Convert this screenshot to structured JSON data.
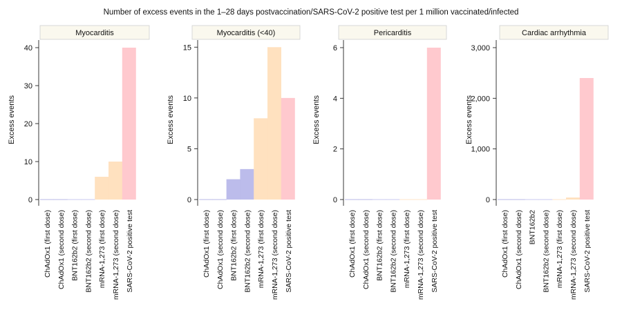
{
  "figure": {
    "title": "Number of excess events in the 1–28 days postvaccination/SARS-CoV-2 positive test per 1 million vaccinated/infected"
  },
  "colors": {
    "ChAdOx1": "#9999dd",
    "BNT162b2": "#b0b0e8",
    "mRNA": "#ffdcb4",
    "SARS": "#ffc0c6",
    "panel_header_bg": "#faf8ee",
    "panel_header_border": "#cfcfcf"
  },
  "chart_data": [
    {
      "type": "bar",
      "title": "Myocarditis",
      "ylabel": "Excess events",
      "xlabel": "",
      "ylim": [
        0,
        42
      ],
      "yticks": [
        0,
        10,
        20,
        30,
        40
      ],
      "ytick_labels": [
        "0",
        "10",
        "20",
        "30",
        "40"
      ],
      "categories": [
        "ChAdOx1 (first dose)",
        "ChAdOx1 (second dose)",
        "BNT162b2 (first dose)",
        "BNT162b2 (second dose)",
        "mRNA-1,273 (first dose)",
        "mRNA-1,273 (second dose)",
        "SARS-CoV-2 positive test"
      ],
      "values": [
        0,
        0,
        0,
        0,
        6,
        10,
        40
      ],
      "color_groups": [
        "ChAdOx1",
        "ChAdOx1",
        "BNT162b2",
        "BNT162b2",
        "mRNA",
        "mRNA",
        "SARS"
      ]
    },
    {
      "type": "bar",
      "title": "Myocarditis (<40)",
      "ylabel": "Excess events",
      "xlabel": "",
      "ylim": [
        0,
        15.7
      ],
      "yticks": [
        0,
        5,
        10,
        15
      ],
      "ytick_labels": [
        "0",
        "5",
        "10",
        "15"
      ],
      "categories": [
        "ChAdOx1 (first dose)",
        "ChAdOx1 (second dose)",
        "BNT162b2 (first dose)",
        "BNT162b2 (second dose)",
        "mRNA-1,273 (first dose)",
        "mRNA-1,273 (second dose)",
        "SARS-CoV-2 positive test"
      ],
      "values": [
        0,
        0,
        2,
        3,
        8,
        15,
        10
      ],
      "color_groups": [
        "ChAdOx1",
        "ChAdOx1",
        "BNT162b2",
        "BNT162b2",
        "mRNA",
        "mRNA",
        "SARS"
      ]
    },
    {
      "type": "bar",
      "title": "Pericarditis",
      "ylabel": "Excess events",
      "xlabel": "",
      "ylim": [
        0,
        6.3
      ],
      "yticks": [
        0,
        2,
        4,
        6
      ],
      "ytick_labels": [
        "0",
        "2",
        "4",
        "6"
      ],
      "categories": [
        "ChAdOx1 (first dose)",
        "ChAdOx1 (second dose)",
        "BNT162b2 (first dose)",
        "BNT162b2 (second dose)",
        "mRNA-1,273 (first dose)",
        "mRNA-1,273 (second dose)",
        "SARS-CoV-2 positive test"
      ],
      "values": [
        0,
        0,
        0,
        0,
        0,
        0,
        6
      ],
      "color_groups": [
        "ChAdOx1",
        "ChAdOx1",
        "BNT162b2",
        "BNT162b2",
        "mRNA",
        "mRNA",
        "SARS"
      ]
    },
    {
      "type": "bar",
      "title": "Cardiac arrhythmia",
      "ylabel": "Excess events",
      "xlabel": "",
      "ylim": [
        0,
        3150
      ],
      "yticks": [
        0,
        1000,
        2000,
        3000
      ],
      "ytick_labels": [
        "0",
        "1,000",
        "2,000",
        "3,000"
      ],
      "categories": [
        "ChAdOx1 (first dose)",
        "ChAdOx1 (second dose)",
        "BNT162b2",
        "BNT162b2 (second dose)",
        "mRNA-1,273 (first dose)",
        "mRNA-1,273 (second dose)",
        "SARS-CoV-2 positive test"
      ],
      "values": [
        0,
        0,
        0,
        0,
        0,
        40,
        2400
      ],
      "color_groups": [
        "ChAdOx1",
        "ChAdOx1",
        "BNT162b2",
        "BNT162b2",
        "mRNA",
        "mRNA",
        "SARS"
      ]
    }
  ]
}
